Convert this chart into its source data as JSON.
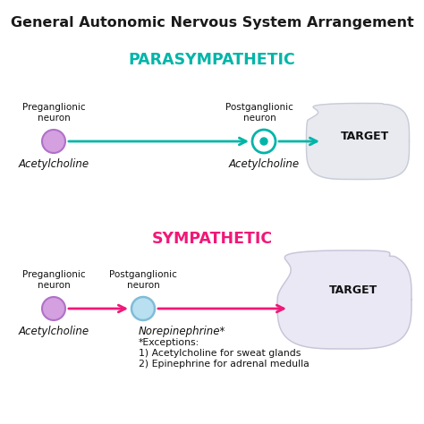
{
  "title": "General Autonomic Nervous System Arrangement",
  "title_fontsize": 11.5,
  "title_color": "#1a1a1a",
  "bg_color": "#ffffff",
  "parasympathetic_label": "PARASYMPATHETIC",
  "parasympathetic_color": "#00b5a8",
  "sympathetic_label": "SYMPATHETIC",
  "sympathetic_color": "#f01878",
  "target_label": "TARGET",
  "acetylcholine_label": "Acetylcholine",
  "norepinephrine_label": "Norepinephrine*",
  "exceptions_line1": "*Exceptions:",
  "exceptions_line2": "1) Acetylcholine for sweat glands",
  "exceptions_line3": "2) Epinephrine for adrenal medulla",
  "pre_neuron_line1": "Preganglionic",
  "pre_neuron_line2": "neuron",
  "post_neuron_line1": "Postganglionic",
  "post_neuron_line2": "neuron",
  "para_pre_circle_fill": "#d4a0e0",
  "para_pre_circle_edge": "#b070c8",
  "para_post_circle_fill": "#ffffff",
  "para_post_circle_edge": "#00b5a8",
  "sym_pre_circle_fill": "#d4a0e0",
  "sym_pre_circle_edge": "#b070c8",
  "sym_post_circle_fill": "#b8e0f0",
  "sym_post_circle_edge": "#80bcd8",
  "target_para_fill": "#e8eaf0",
  "target_para_edge": "#c8ccd8",
  "target_sym_fill": "#eae8f4",
  "target_sym_edge": "#c8c4d8",
  "label_text_color": "#111111",
  "neuron_label_fontsize": 7.5,
  "section_fontsize": 12.5,
  "target_fontsize": 9,
  "ach_fontsize": 8.5,
  "exc_fontsize": 7.8
}
